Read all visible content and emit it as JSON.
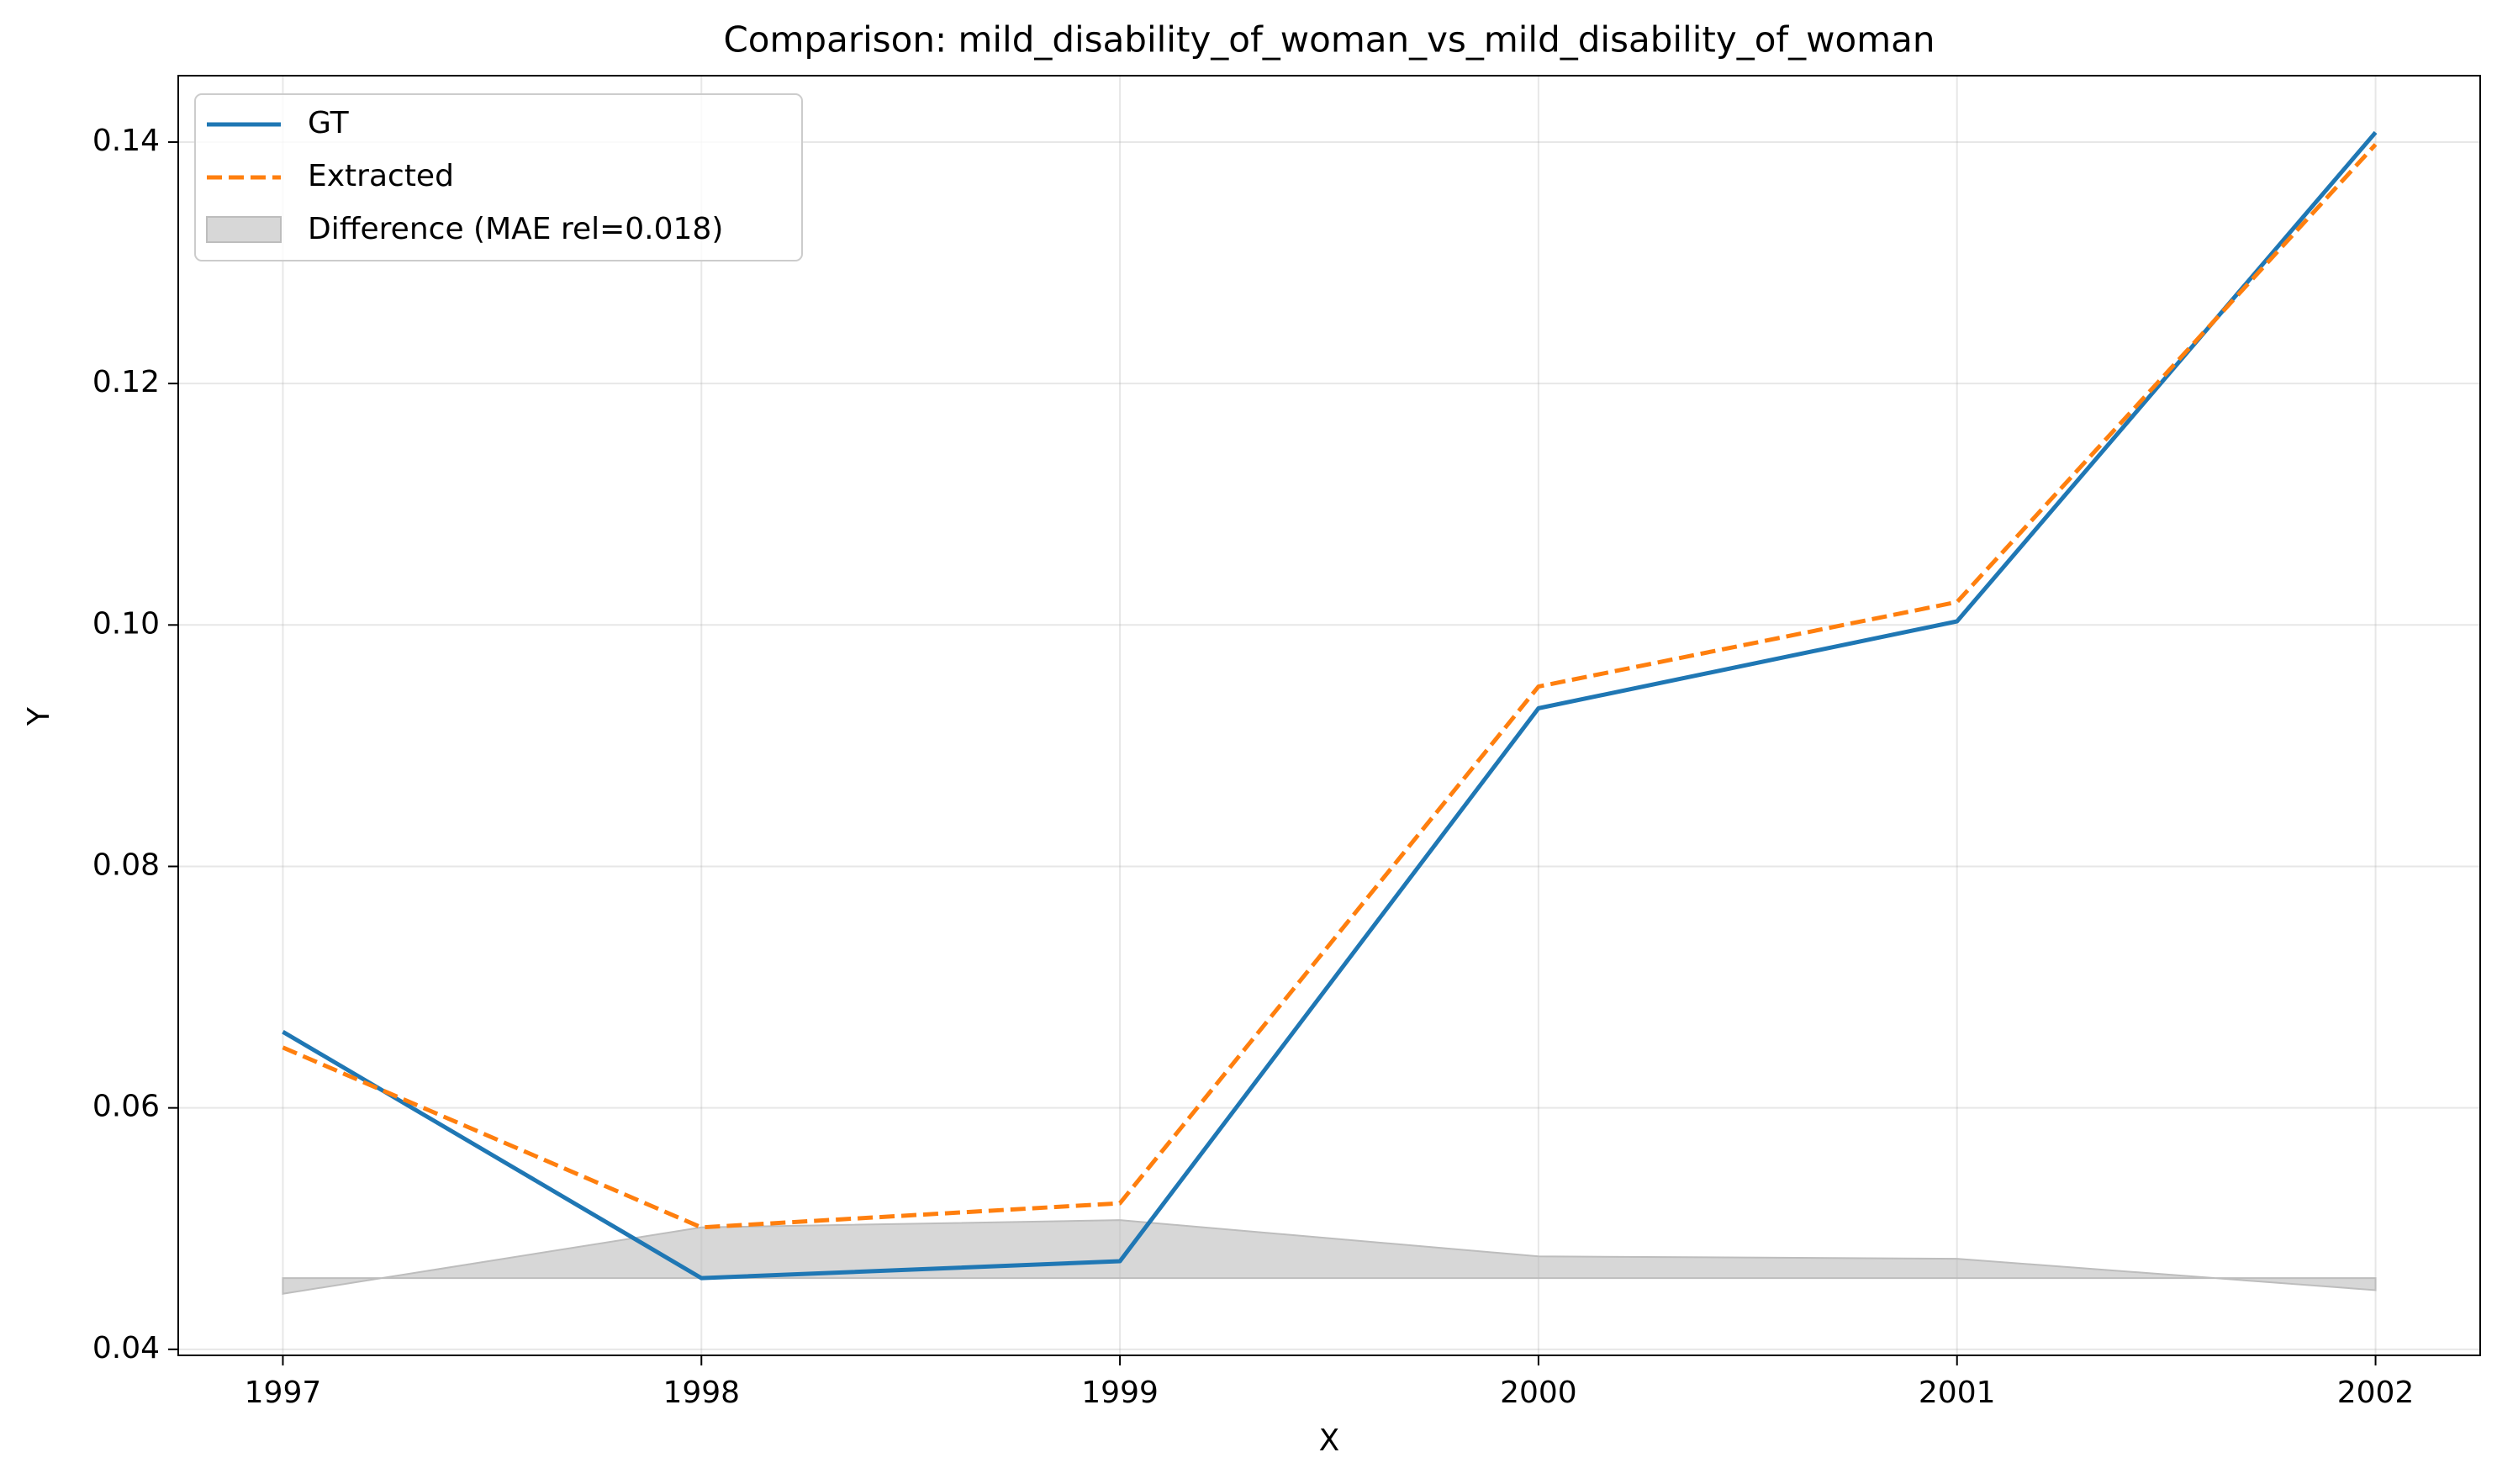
{
  "chart_data": {
    "type": "line",
    "title": "Comparison: mild_disability_of_woman_vs_mild_disability_of_woman",
    "xlabel": "X",
    "ylabel": "Y",
    "x": [
      1997,
      1998,
      1999,
      2000,
      2001,
      2002
    ],
    "x_ticks": [
      "1997",
      "1998",
      "1999",
      "2000",
      "2001",
      "2002"
    ],
    "xlim": [
      1996.75,
      2002.25
    ],
    "ylim": [
      0.0395,
      0.1455
    ],
    "y_ticks": [
      "0.04",
      "0.06",
      "0.08",
      "0.10",
      "0.12",
      "0.14"
    ],
    "y_tick_values": [
      0.04,
      0.06,
      0.08,
      0.1,
      0.12,
      0.14
    ],
    "grid": true,
    "legend_position": "upper-left",
    "series": [
      {
        "name": "GT",
        "values": [
          0.0663,
          0.0459,
          0.0473,
          0.0931,
          0.1003,
          0.1408
        ],
        "color": "#1f77b4",
        "style": "solid"
      },
      {
        "name": "Extracted",
        "values": [
          0.065,
          0.0501,
          0.0521,
          0.0949,
          0.1019,
          0.1398
        ],
        "color": "#ff7f0e",
        "style": "dashed"
      }
    ],
    "difference_band": {
      "name": "Difference (MAE rel=0.018)",
      "baseline": 0.0459,
      "values": [
        -0.0013,
        0.0042,
        0.0048,
        0.0018,
        0.0016,
        -0.001
      ],
      "color": "#bdbdbd"
    }
  }
}
